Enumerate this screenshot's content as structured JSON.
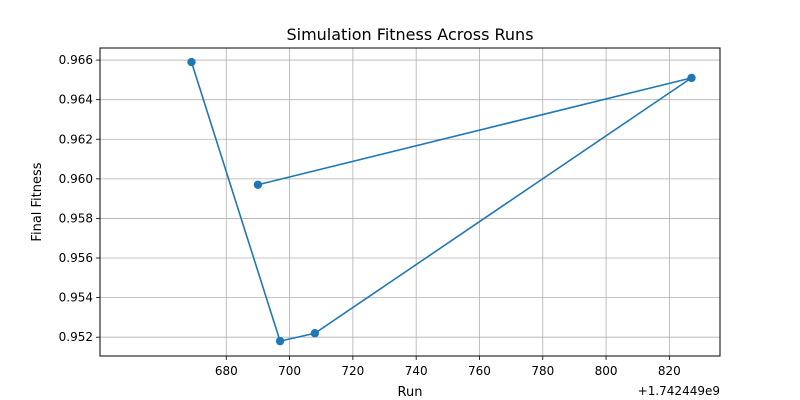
{
  "chart_data": {
    "type": "line",
    "title": "Simulation Fitness Across Runs",
    "xlabel": "Run",
    "ylabel": "Final Fitness",
    "x_offset_label": "+1.742449e9",
    "xlim": [
      640.1,
      836.0
    ],
    "ylim": [
      0.95105,
      0.96661
    ],
    "grid": true,
    "color": "#1f77b4",
    "marker": "circle",
    "xticks": [
      680,
      700,
      720,
      740,
      760,
      780,
      800,
      820
    ],
    "xtick_labels": [
      "680",
      "700",
      "720",
      "740",
      "760",
      "780",
      "800",
      "820"
    ],
    "yticks": [
      0.952,
      0.954,
      0.956,
      0.958,
      0.96,
      0.962,
      0.964,
      0.966
    ],
    "ytick_labels": [
      "0.952",
      "0.954",
      "0.956",
      "0.958",
      "0.960",
      "0.962",
      "0.964",
      "0.966"
    ],
    "series": [
      {
        "x": [
          669,
          697,
          708,
          827,
          690
        ],
        "y": [
          0.9659,
          0.9518,
          0.9522,
          0.9651,
          0.9597
        ]
      }
    ]
  }
}
